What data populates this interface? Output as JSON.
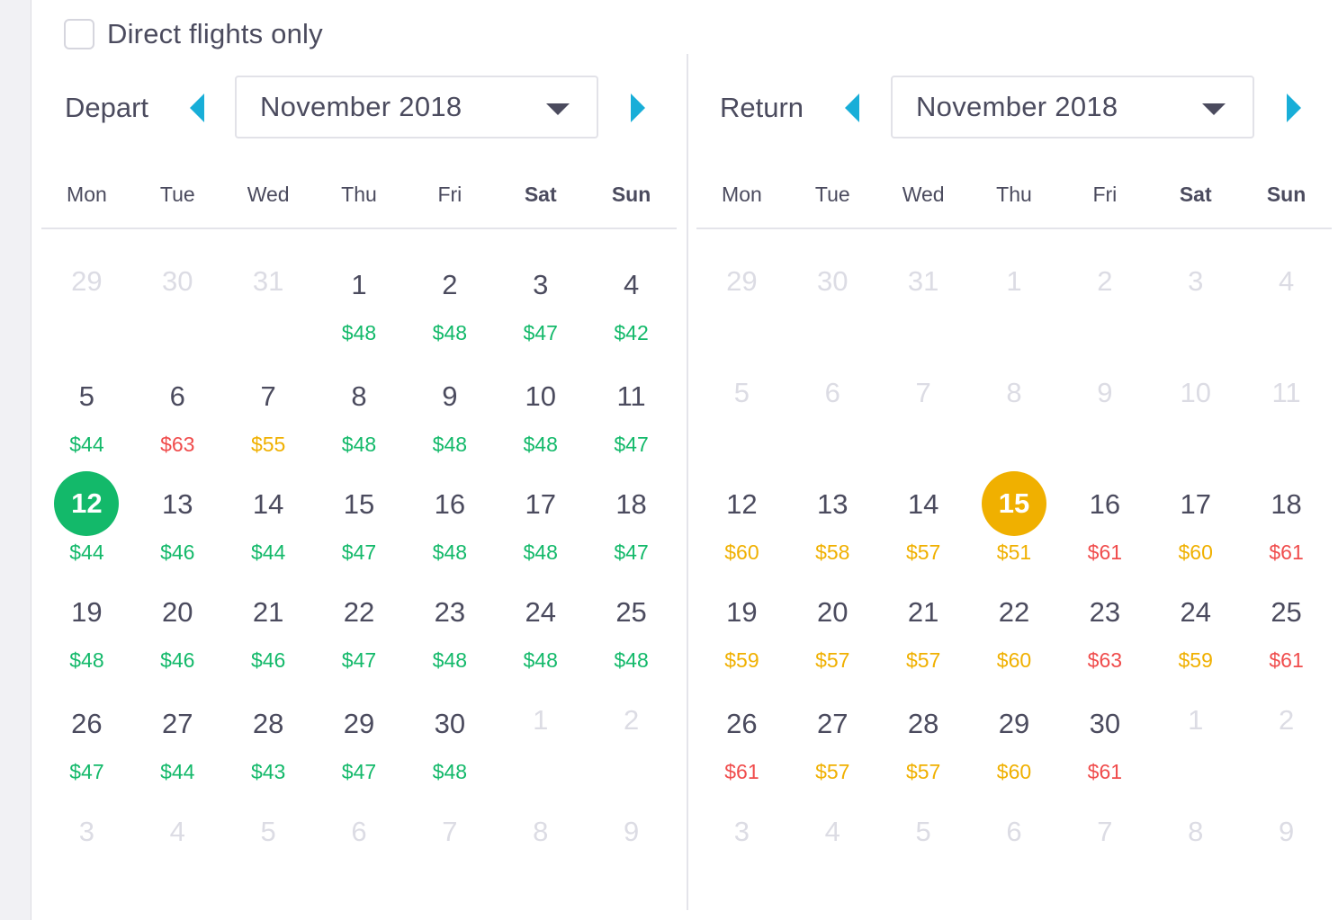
{
  "filter": {
    "direct_label": "Direct flights only",
    "checked": false
  },
  "depart": {
    "title": "Depart",
    "month": "November 2018",
    "weekdays": [
      "Mon",
      "Tue",
      "Wed",
      "Thu",
      "Fri",
      "Sat",
      "Sun"
    ],
    "weeks": [
      [
        {
          "d": "29",
          "o": true
        },
        {
          "d": "30",
          "o": true
        },
        {
          "d": "31",
          "o": true
        },
        {
          "d": "1",
          "p": "$48",
          "c": "green"
        },
        {
          "d": "2",
          "p": "$48",
          "c": "green"
        },
        {
          "d": "3",
          "p": "$47",
          "c": "green"
        },
        {
          "d": "4",
          "p": "$42",
          "c": "green"
        }
      ],
      [
        {
          "d": "5",
          "p": "$44",
          "c": "green"
        },
        {
          "d": "6",
          "p": "$63",
          "c": "red"
        },
        {
          "d": "7",
          "p": "$55",
          "c": "orange"
        },
        {
          "d": "8",
          "p": "$48",
          "c": "green"
        },
        {
          "d": "9",
          "p": "$48",
          "c": "green"
        },
        {
          "d": "10",
          "p": "$48",
          "c": "green"
        },
        {
          "d": "11",
          "p": "$47",
          "c": "green"
        }
      ],
      [
        {
          "d": "12",
          "p": "$44",
          "c": "green",
          "s": true
        },
        {
          "d": "13",
          "p": "$46",
          "c": "green"
        },
        {
          "d": "14",
          "p": "$44",
          "c": "green"
        },
        {
          "d": "15",
          "p": "$47",
          "c": "green"
        },
        {
          "d": "16",
          "p": "$48",
          "c": "green"
        },
        {
          "d": "17",
          "p": "$48",
          "c": "green"
        },
        {
          "d": "18",
          "p": "$47",
          "c": "green"
        }
      ],
      [
        {
          "d": "19",
          "p": "$48",
          "c": "green"
        },
        {
          "d": "20",
          "p": "$46",
          "c": "green"
        },
        {
          "d": "21",
          "p": "$46",
          "c": "green"
        },
        {
          "d": "22",
          "p": "$47",
          "c": "green"
        },
        {
          "d": "23",
          "p": "$48",
          "c": "green"
        },
        {
          "d": "24",
          "p": "$48",
          "c": "green"
        },
        {
          "d": "25",
          "p": "$48",
          "c": "green"
        }
      ],
      [
        {
          "d": "26",
          "p": "$47",
          "c": "green"
        },
        {
          "d": "27",
          "p": "$44",
          "c": "green"
        },
        {
          "d": "28",
          "p": "$43",
          "c": "green"
        },
        {
          "d": "29",
          "p": "$47",
          "c": "green"
        },
        {
          "d": "30",
          "p": "$48",
          "c": "green"
        },
        {
          "d": "1",
          "o": true
        },
        {
          "d": "2",
          "o": true
        }
      ],
      [
        {
          "d": "3",
          "o": true
        },
        {
          "d": "4",
          "o": true
        },
        {
          "d": "5",
          "o": true
        },
        {
          "d": "6",
          "o": true
        },
        {
          "d": "7",
          "o": true
        },
        {
          "d": "8",
          "o": true
        },
        {
          "d": "9",
          "o": true
        }
      ]
    ]
  },
  "return": {
    "title": "Return",
    "month": "November 2018",
    "weekdays": [
      "Mon",
      "Tue",
      "Wed",
      "Thu",
      "Fri",
      "Sat",
      "Sun"
    ],
    "weeks": [
      [
        {
          "d": "29",
          "o": true
        },
        {
          "d": "30",
          "o": true
        },
        {
          "d": "31",
          "o": true
        },
        {
          "d": "1",
          "o": true
        },
        {
          "d": "2",
          "o": true
        },
        {
          "d": "3",
          "o": true
        },
        {
          "d": "4",
          "o": true
        }
      ],
      [
        {
          "d": "5",
          "o": true
        },
        {
          "d": "6",
          "o": true
        },
        {
          "d": "7",
          "o": true
        },
        {
          "d": "8",
          "o": true
        },
        {
          "d": "9",
          "o": true
        },
        {
          "d": "10",
          "o": true
        },
        {
          "d": "11",
          "o": true
        }
      ],
      [
        {
          "d": "12",
          "p": "$60",
          "c": "orange"
        },
        {
          "d": "13",
          "p": "$58",
          "c": "orange"
        },
        {
          "d": "14",
          "p": "$57",
          "c": "orange"
        },
        {
          "d": "15",
          "p": "$51",
          "c": "orange",
          "s": true
        },
        {
          "d": "16",
          "p": "$61",
          "c": "red"
        },
        {
          "d": "17",
          "p": "$60",
          "c": "orange"
        },
        {
          "d": "18",
          "p": "$61",
          "c": "red"
        }
      ],
      [
        {
          "d": "19",
          "p": "$59",
          "c": "orange"
        },
        {
          "d": "20",
          "p": "$57",
          "c": "orange"
        },
        {
          "d": "21",
          "p": "$57",
          "c": "orange"
        },
        {
          "d": "22",
          "p": "$60",
          "c": "orange"
        },
        {
          "d": "23",
          "p": "$63",
          "c": "red"
        },
        {
          "d": "24",
          "p": "$59",
          "c": "orange"
        },
        {
          "d": "25",
          "p": "$61",
          "c": "red"
        }
      ],
      [
        {
          "d": "26",
          "p": "$61",
          "c": "red"
        },
        {
          "d": "27",
          "p": "$57",
          "c": "orange"
        },
        {
          "d": "28",
          "p": "$57",
          "c": "orange"
        },
        {
          "d": "29",
          "p": "$60",
          "c": "orange"
        },
        {
          "d": "30",
          "p": "$61",
          "c": "red"
        },
        {
          "d": "1",
          "o": true
        },
        {
          "d": "2",
          "o": true
        }
      ],
      [
        {
          "d": "3",
          "o": true
        },
        {
          "d": "4",
          "o": true
        },
        {
          "d": "5",
          "o": true
        },
        {
          "d": "6",
          "o": true
        },
        {
          "d": "7",
          "o": true
        },
        {
          "d": "8",
          "o": true
        },
        {
          "d": "9",
          "o": true
        }
      ]
    ]
  },
  "icons": {
    "prev": "chevron-left-icon",
    "next": "chevron-right-icon",
    "dropdown": "caret-down-icon"
  },
  "colors": {
    "accent": "#18aed8",
    "green": "#13b96a",
    "orange": "#f0b000",
    "red": "#f04c4c",
    "text": "#4b4b5e",
    "muted": "#dcdce4"
  }
}
